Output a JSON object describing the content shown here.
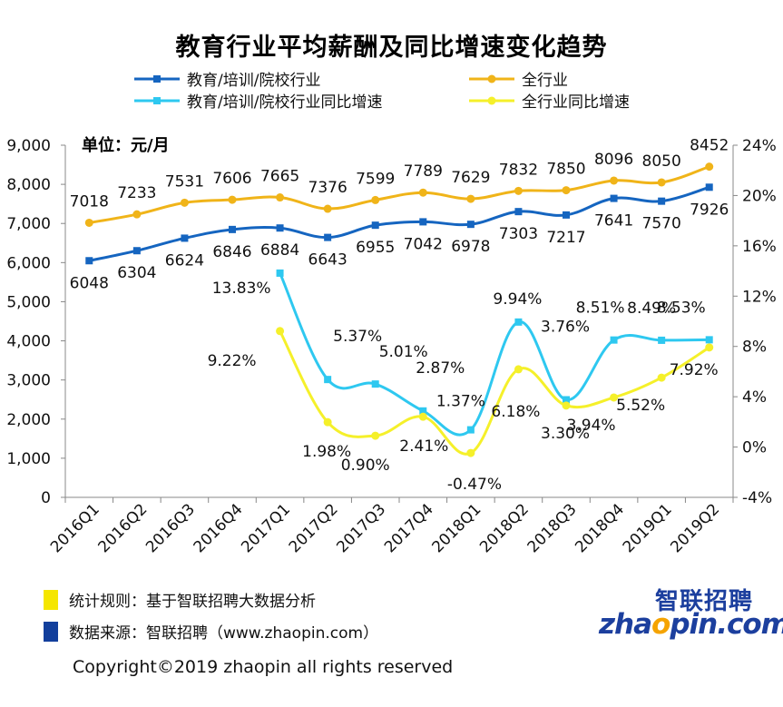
{
  "title": "教育行业平均薪酬及同比增速变化趋势",
  "unit_label": "单位：元/月",
  "legend": [
    {
      "label": "教育/培训/院校行业",
      "color": "#1565c0",
      "marker": "square"
    },
    {
      "label": "全行业",
      "color": "#f0b419",
      "marker": "circle"
    },
    {
      "label": "教育/培训/院校行业同比增速",
      "color": "#2ec8f0",
      "marker": "square"
    },
    {
      "label": "全行业同比增速",
      "color": "#f5f02a",
      "marker": "circle"
    }
  ],
  "footer": {
    "rule": "统计规则：基于智联招聘大数据分析",
    "rule_color": "#f5e600",
    "source": "数据来源：智联招聘（www.zhaopin.com）",
    "source_color": "#123f9c",
    "copyright": "Copyright©2019 zhaopin all rights reserved"
  },
  "logo": {
    "cn": "智联招聘",
    "en_prefix": "zha",
    "en_o": "o",
    "en_suffix": "pin.com"
  },
  "chart_data": {
    "type": "line",
    "categories": [
      "2016Q1",
      "2016Q2",
      "2016Q3",
      "2016Q4",
      "2017Q1",
      "2017Q2",
      "2017Q3",
      "2017Q4",
      "2018Q1",
      "2018Q2",
      "2018Q3",
      "2018Q4",
      "2019Q1",
      "2019Q2"
    ],
    "y_left": {
      "ticks": [
        "0",
        "1,000",
        "2,000",
        "3,000",
        "4,000",
        "5,000",
        "6,000",
        "7,000",
        "8,000",
        "9,000"
      ],
      "range": [
        0,
        9000
      ]
    },
    "y_right": {
      "ticks": [
        "-4%",
        "0%",
        "4%",
        "8%",
        "12%",
        "16%",
        "20%",
        "24%"
      ],
      "range": [
        -4,
        24
      ]
    },
    "series": [
      {
        "name": "教育/培训/院校行业",
        "axis": "left",
        "color": "#1565c0",
        "values": [
          6048,
          6304,
          6624,
          6846,
          6884,
          6643,
          6955,
          7042,
          6978,
          7303,
          7217,
          7641,
          7570,
          7926
        ],
        "labels": [
          "6048",
          "6304",
          "6624",
          "6846",
          "6884",
          "6643",
          "6955",
          "7042",
          "6978",
          "7303",
          "7217",
          "7641",
          "7570",
          "7926"
        ]
      },
      {
        "name": "全行业",
        "axis": "left",
        "color": "#f0b419",
        "values": [
          7018,
          7233,
          7531,
          7606,
          7665,
          7376,
          7599,
          7789,
          7629,
          7832,
          7850,
          8096,
          8050,
          8452
        ],
        "labels": [
          "7018",
          "7233",
          "7531",
          "7606",
          "7665",
          "7376",
          "7599",
          "7789",
          "7629",
          "7832",
          "7850",
          "8096",
          "8050",
          "8452"
        ]
      },
      {
        "name": "教育/培训/院校行业同比增速",
        "axis": "right",
        "color": "#2ec8f0",
        "values": [
          null,
          null,
          null,
          null,
          13.83,
          5.37,
          5.01,
          2.87,
          1.37,
          9.94,
          3.76,
          8.51,
          8.49,
          8.53
        ],
        "labels": [
          null,
          null,
          null,
          null,
          "13.83%",
          "5.37%",
          "5.01%",
          "2.87%",
          "1.37%",
          "9.94%",
          "3.76%",
          "8.51%",
          "8.49%",
          "8.53%"
        ]
      },
      {
        "name": "全行业同比增速",
        "axis": "right",
        "color": "#f5f02a",
        "values": [
          null,
          null,
          null,
          null,
          9.22,
          1.98,
          0.9,
          2.41,
          -0.47,
          6.18,
          3.3,
          3.94,
          5.52,
          7.92
        ],
        "labels": [
          null,
          null,
          null,
          null,
          "9.22%",
          "1.98%",
          "0.90%",
          "2.41%",
          "-0.47%",
          "6.18%",
          "3.30%",
          "3.94%",
          "5.52%",
          "7.92%"
        ]
      }
    ]
  }
}
